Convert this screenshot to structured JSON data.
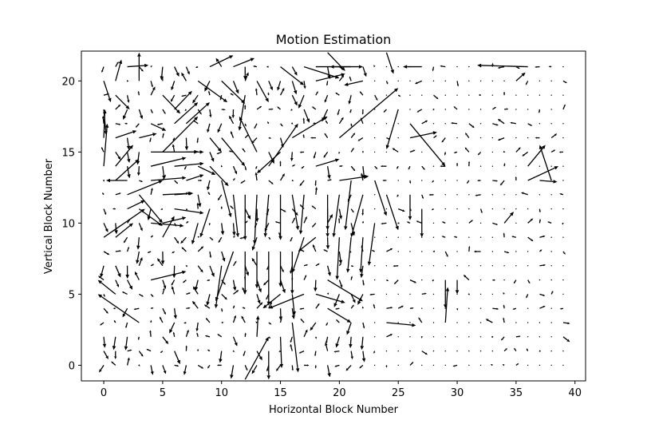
{
  "chart_data": {
    "type": "quiver",
    "title": "Motion Estimation",
    "xlabel": "Horizontal Block Number",
    "ylabel": "Vertical Block Number",
    "xlim": [
      -1.9,
      40.9
    ],
    "ylim": [
      -1.1,
      22.1
    ],
    "xticks": [
      0,
      5,
      10,
      15,
      20,
      25,
      30,
      35,
      40
    ],
    "yticks": [
      0,
      5,
      10,
      15,
      20
    ],
    "grid": false,
    "legend": "none",
    "arrow_color": "#000000",
    "grid_x_count": 40,
    "grid_y_count": 22,
    "vectors": [
      {
        "x": 0,
        "y": 20,
        "u": 0.6,
        "v": -1.5
      },
      {
        "x": 1,
        "y": 20,
        "u": 0.5,
        "v": 1.5
      },
      {
        "x": 1,
        "y": 19,
        "u": 1.2,
        "v": -1.0
      },
      {
        "x": 0,
        "y": 18,
        "u": 0.2,
        "v": -1.8
      },
      {
        "x": 0,
        "y": 16,
        "u": 0.1,
        "v": 2.0
      },
      {
        "x": 0,
        "y": 14,
        "u": 0.3,
        "v": 3.0
      },
      {
        "x": 1,
        "y": 14,
        "u": 1.5,
        "v": 1.5
      },
      {
        "x": 0,
        "y": 9,
        "u": 3.5,
        "v": 2.0
      },
      {
        "x": 1,
        "y": 9,
        "u": 1.5,
        "v": 1.0
      },
      {
        "x": 3,
        "y": 3,
        "u": -3.5,
        "v": 2.0
      },
      {
        "x": 1,
        "y": 5,
        "u": -1.5,
        "v": 1.0
      },
      {
        "x": 2,
        "y": 12,
        "u": 3.0,
        "v": 1.0
      },
      {
        "x": 3,
        "y": 12,
        "u": 2.0,
        "v": -2.0
      },
      {
        "x": 3,
        "y": 11,
        "u": 2.0,
        "v": -1.2
      },
      {
        "x": 4,
        "y": 13,
        "u": 3.0,
        "v": 0.2
      },
      {
        "x": 5,
        "y": 12,
        "u": 2.5,
        "v": 0.1
      },
      {
        "x": 6,
        "y": 11,
        "u": 2.5,
        "v": -0.3
      },
      {
        "x": 4,
        "y": 10,
        "u": 2.8,
        "v": -0.2
      },
      {
        "x": 5,
        "y": 10,
        "u": 2.0,
        "v": 0.4
      },
      {
        "x": 5,
        "y": 9,
        "u": 1.0,
        "v": 1.5
      },
      {
        "x": 4,
        "y": 6,
        "u": 3.0,
        "v": 0.6
      },
      {
        "x": 5,
        "y": 15,
        "u": 3.0,
        "v": 2.5
      },
      {
        "x": 6,
        "y": 17,
        "u": 2.0,
        "v": 1.5
      },
      {
        "x": 5,
        "y": 19,
        "u": 1.5,
        "v": -1.3
      },
      {
        "x": 4,
        "y": 15,
        "u": 4.0,
        "v": 0.0
      },
      {
        "x": 4,
        "y": 14,
        "u": 3.0,
        "v": 0.6
      },
      {
        "x": 6,
        "y": 14,
        "u": 2.5,
        "v": 0.2
      },
      {
        "x": 7,
        "y": 13,
        "u": 1.5,
        "v": 0.4
      },
      {
        "x": 6,
        "y": 12,
        "u": 1.6,
        "v": 0.1
      },
      {
        "x": 3,
        "y": 20,
        "u": 0.0,
        "v": 2.0
      },
      {
        "x": 2,
        "y": 21,
        "u": 1.8,
        "v": 0.1
      },
      {
        "x": 8,
        "y": 20,
        "u": 2.5,
        "v": -1.5
      },
      {
        "x": 9,
        "y": 21,
        "u": 2.0,
        "v": 0.8
      },
      {
        "x": 10,
        "y": 20,
        "u": 2.0,
        "v": -1.6
      },
      {
        "x": 11,
        "y": 21,
        "u": 1.8,
        "v": 0.6
      },
      {
        "x": 10,
        "y": 16,
        "u": 2.0,
        "v": -2.0
      },
      {
        "x": 9,
        "y": 14,
        "u": 1.6,
        "v": -1.4
      },
      {
        "x": 10,
        "y": 13,
        "u": 0.8,
        "v": -2.6
      },
      {
        "x": 11,
        "y": 12,
        "u": 0.4,
        "v": -3.0
      },
      {
        "x": 12,
        "y": 12,
        "u": 0.0,
        "v": -3.2
      },
      {
        "x": 13,
        "y": 12,
        "u": -0.2,
        "v": -3.5
      },
      {
        "x": 14,
        "y": 12,
        "u": -0.3,
        "v": -3.0
      },
      {
        "x": 15,
        "y": 12,
        "u": 0.0,
        "v": -3.2
      },
      {
        "x": 16,
        "y": 12,
        "u": 0.5,
        "v": -2.5
      },
      {
        "x": 17,
        "y": 12,
        "u": -0.3,
        "v": -2.8
      },
      {
        "x": 12,
        "y": 8,
        "u": 0.0,
        "v": -3.0
      },
      {
        "x": 13,
        "y": 8,
        "u": 0.0,
        "v": -2.6
      },
      {
        "x": 14,
        "y": 8,
        "u": 0.0,
        "v": -3.8
      },
      {
        "x": 15,
        "y": 8,
        "u": 0.0,
        "v": -2.5
      },
      {
        "x": 16,
        "y": 8,
        "u": 0.0,
        "v": -3.0
      },
      {
        "x": 11,
        "y": 8,
        "u": -1.5,
        "v": -3.5
      },
      {
        "x": 10,
        "y": 7,
        "u": -0.5,
        "v": -3.0
      },
      {
        "x": 12,
        "y": -1,
        "u": 2.0,
        "v": 3.0
      },
      {
        "x": 13,
        "y": 2,
        "u": 0.1,
        "v": 1.5
      },
      {
        "x": 14,
        "y": 1,
        "u": 0.0,
        "v": -2.0
      },
      {
        "x": 15,
        "y": 2,
        "u": 0.1,
        "v": -2.2
      },
      {
        "x": 16,
        "y": 3,
        "u": 0.5,
        "v": -3.5
      },
      {
        "x": 17,
        "y": 5,
        "u": -3.0,
        "v": -1.0
      },
      {
        "x": 15,
        "y": 5,
        "u": -1.5,
        "v": -1.0
      },
      {
        "x": 16,
        "y": 5,
        "u": 0.2,
        "v": -1.5
      },
      {
        "x": 18,
        "y": 5,
        "u": 2.5,
        "v": -0.6
      },
      {
        "x": 19,
        "y": 6,
        "u": 3.0,
        "v": -1.5
      },
      {
        "x": 19,
        "y": 4,
        "u": 2.0,
        "v": -1.0
      },
      {
        "x": 24,
        "y": 3,
        "u": 2.5,
        "v": -0.2
      },
      {
        "x": 20,
        "y": 16,
        "u": 5.0,
        "v": 3.5
      },
      {
        "x": 25,
        "y": 18,
        "u": -1.0,
        "v": -2.8
      },
      {
        "x": 26,
        "y": 17,
        "u": 3.0,
        "v": -3.0
      },
      {
        "x": 26,
        "y": 16,
        "u": 2.3,
        "v": 0.4
      },
      {
        "x": 23,
        "y": 13,
        "u": 1.0,
        "v": -2.5
      },
      {
        "x": 21,
        "y": 13,
        "u": -0.5,
        "v": -3.5
      },
      {
        "x": 22,
        "y": 12,
        "u": -1.0,
        "v": -3.0
      },
      {
        "x": 20,
        "y": 12,
        "u": -0.5,
        "v": -3.0
      },
      {
        "x": 19,
        "y": 12,
        "u": 0.0,
        "v": -2.5
      },
      {
        "x": 18,
        "y": 14,
        "u": 2.0,
        "v": 0.5
      },
      {
        "x": 20,
        "y": 13,
        "u": 2.5,
        "v": 0.3
      },
      {
        "x": 19,
        "y": 11,
        "u": 0.0,
        "v": -2.0
      },
      {
        "x": 16,
        "y": 16,
        "u": 3.0,
        "v": 1.5
      },
      {
        "x": 15,
        "y": 15,
        "u": -2.0,
        "v": -1.5
      },
      {
        "x": 14,
        "y": 14,
        "u": 2.5,
        "v": 3.0
      },
      {
        "x": 13,
        "y": 15,
        "u": -1.5,
        "v": 2.5
      },
      {
        "x": 12,
        "y": 19,
        "u": -0.5,
        "v": -2.5
      },
      {
        "x": 13,
        "y": 20,
        "u": 1.0,
        "v": -1.5
      },
      {
        "x": 15,
        "y": 21,
        "u": 2.0,
        "v": -1.3
      },
      {
        "x": 17,
        "y": 21,
        "u": 3.0,
        "v": -0.8
      },
      {
        "x": 18,
        "y": 20,
        "u": 2.5,
        "v": 0.5
      },
      {
        "x": 19,
        "y": 22,
        "u": 1.5,
        "v": -1.3
      },
      {
        "x": 18,
        "y": 21,
        "u": 4.0,
        "v": 0.0
      },
      {
        "x": 21,
        "y": 21,
        "u": -1.8,
        "v": 0.0
      },
      {
        "x": 22,
        "y": 20,
        "u": -1.6,
        "v": -0.3
      },
      {
        "x": 24,
        "y": 22,
        "u": 0.6,
        "v": -1.5
      },
      {
        "x": 27,
        "y": 21,
        "u": -1.6,
        "v": 0.0
      },
      {
        "x": 36,
        "y": 21,
        "u": -4.3,
        "v": 0.1
      },
      {
        "x": 35,
        "y": 20,
        "u": 0.8,
        "v": 0.6
      },
      {
        "x": 36,
        "y": 13,
        "u": 2.6,
        "v": 1.0
      },
      {
        "x": 36,
        "y": 14,
        "u": 1.5,
        "v": 1.5
      },
      {
        "x": 38,
        "y": 13,
        "u": -1.0,
        "v": 2.5
      },
      {
        "x": 37,
        "y": 13,
        "u": 1.5,
        "v": -0.1
      },
      {
        "x": 34,
        "y": 10,
        "u": 0.8,
        "v": 0.8
      },
      {
        "x": 29,
        "y": 3,
        "u": 0.2,
        "v": 2.5
      },
      {
        "x": 29,
        "y": 6,
        "u": 0.0,
        "v": -2.0
      },
      {
        "x": 30,
        "y": 6,
        "u": 0.0,
        "v": -1.0
      },
      {
        "x": 24,
        "y": 12,
        "u": 1.0,
        "v": -2.5
      },
      {
        "x": 23,
        "y": 10,
        "u": -0.5,
        "v": -3.0
      },
      {
        "x": 22,
        "y": 9,
        "u": -0.2,
        "v": -2.5
      },
      {
        "x": 21,
        "y": 9,
        "u": -0.3,
        "v": -2.5
      },
      {
        "x": 20,
        "y": 9,
        "u": -0.2,
        "v": -3.0
      },
      {
        "x": 18,
        "y": 9,
        "u": -1.5,
        "v": -1.0
      },
      {
        "x": 17,
        "y": 9,
        "u": -1.0,
        "v": -2.5
      },
      {
        "x": 26,
        "y": 12,
        "u": 0.0,
        "v": -1.8
      },
      {
        "x": 27,
        "y": 11,
        "u": 0.0,
        "v": -2.0
      },
      {
        "x": 9,
        "y": 11,
        "u": -0.8,
        "v": -2.0
      },
      {
        "x": 8,
        "y": 10,
        "u": -0.5,
        "v": -1.5
      },
      {
        "x": 7,
        "y": 17,
        "u": 2.0,
        "v": 1.5
      },
      {
        "x": 6,
        "y": 18,
        "u": 1.5,
        "v": 1.3
      },
      {
        "x": 7,
        "y": 15,
        "u": 1.5,
        "v": 0.0
      },
      {
        "x": 9,
        "y": 16,
        "u": 1.0,
        "v": -1.0
      },
      {
        "x": 8,
        "y": 14,
        "u": 1.5,
        "v": -0.6
      },
      {
        "x": 1,
        "y": 16,
        "u": 1.8,
        "v": 0.5
      },
      {
        "x": 1,
        "y": 13,
        "u": 2.0,
        "v": 1.5
      },
      {
        "x": 2,
        "y": 13,
        "u": -1.8,
        "v": 0.0
      },
      {
        "x": 2,
        "y": 11,
        "u": 1.5,
        "v": 0.6
      },
      {
        "x": 4,
        "y": 17,
        "u": 1.3,
        "v": -0.5
      },
      {
        "x": 3,
        "y": 16,
        "u": 1.5,
        "v": 0.3
      }
    ]
  }
}
